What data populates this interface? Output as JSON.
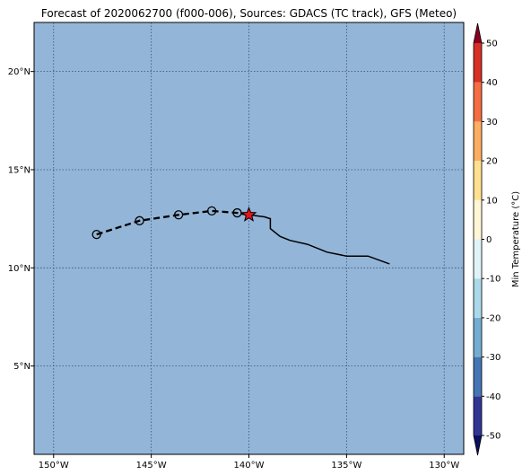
{
  "title": "Forecast of 2020062700 (f000-006), Sources: GDACS (TC track), GFS (Meteo)",
  "colors": {
    "ocean": "#93b5d8",
    "grid": "#3a4f7a",
    "track": "#000000",
    "marker": "#e8141c"
  },
  "map": {
    "lon_range": [
      -151,
      -129
    ],
    "lat_range": [
      0.5,
      22.5
    ],
    "lon_ticks": [
      {
        "value": -150,
        "label": "150°W"
      },
      {
        "value": -145,
        "label": "145°W"
      },
      {
        "value": -140,
        "label": "140°W"
      },
      {
        "value": -135,
        "label": "135°W"
      },
      {
        "value": -130,
        "label": "130°W"
      }
    ],
    "lat_ticks": [
      {
        "value": 5,
        "label": "5°N"
      },
      {
        "value": 10,
        "label": "10°N"
      },
      {
        "value": 15,
        "label": "15°N"
      },
      {
        "value": 20,
        "label": "20°N"
      }
    ],
    "past_track": [
      [
        -140.0,
        12.7
      ],
      [
        -139.2,
        12.6
      ],
      [
        -138.9,
        12.5
      ],
      [
        -138.9,
        12.0
      ],
      [
        -138.4,
        11.6
      ],
      [
        -137.9,
        11.4
      ],
      [
        -137.0,
        11.2
      ],
      [
        -136.0,
        10.8
      ],
      [
        -135.0,
        10.6
      ],
      [
        -133.9,
        10.6
      ],
      [
        -132.8,
        10.2
      ]
    ],
    "forecast_track": [
      [
        -147.8,
        11.7
      ],
      [
        -145.6,
        12.4
      ],
      [
        -143.6,
        12.7
      ],
      [
        -141.9,
        12.9
      ],
      [
        -140.6,
        12.8
      ],
      [
        -140.0,
        12.7
      ]
    ],
    "forecast_points": [
      [
        -147.8,
        11.7
      ],
      [
        -145.6,
        12.4
      ],
      [
        -143.6,
        12.7
      ],
      [
        -141.9,
        12.9
      ],
      [
        -140.6,
        12.8
      ]
    ],
    "current_position": [
      -140.0,
      12.7
    ]
  },
  "colorbar": {
    "label": "Min Temperature (°C)",
    "range": [
      -50,
      50
    ],
    "ticks": [
      "-50",
      "-40",
      "-30",
      "-20",
      "-10",
      "0",
      "10",
      "20",
      "30",
      "40",
      "50"
    ],
    "bins": [
      {
        "from": -50,
        "to": -40,
        "color": "#313695"
      },
      {
        "from": -40,
        "to": -30,
        "color": "#4575b4"
      },
      {
        "from": -30,
        "to": -20,
        "color": "#74add1"
      },
      {
        "from": -20,
        "to": -10,
        "color": "#abd9e9"
      },
      {
        "from": -10,
        "to": 0,
        "color": "#e0f3f8"
      },
      {
        "from": 0,
        "to": 10,
        "color": "#fff6d5"
      },
      {
        "from": 10,
        "to": 20,
        "color": "#fee090"
      },
      {
        "from": 20,
        "to": 30,
        "color": "#fdae61"
      },
      {
        "from": 30,
        "to": 40,
        "color": "#f46d43"
      },
      {
        "from": 40,
        "to": 50,
        "color": "#d73027"
      }
    ],
    "extend_min_color": "#0b0f5e",
    "extend_max_color": "#8a0020"
  }
}
